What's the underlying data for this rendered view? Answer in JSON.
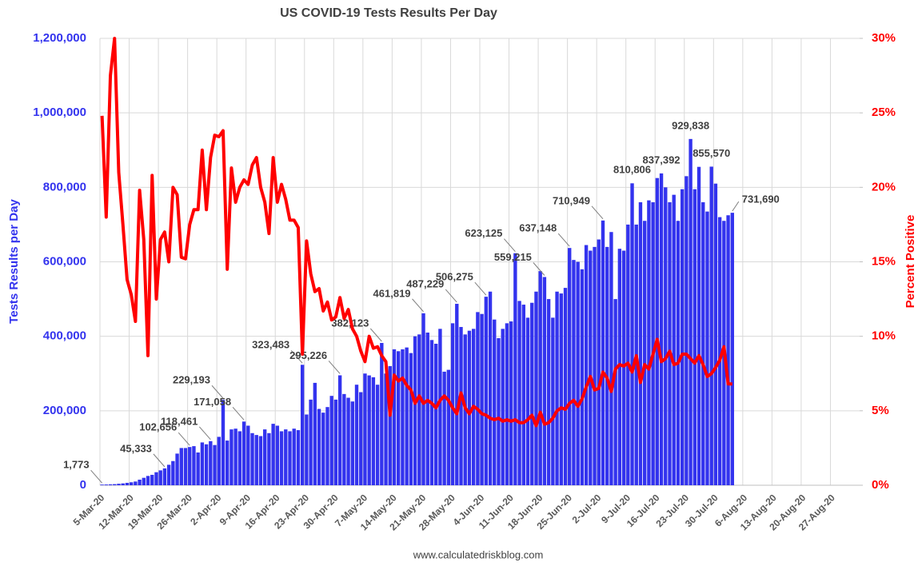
{
  "chart_data": {
    "type": "bar",
    "title": "US COVID-19 Tests Results Per Day",
    "y_label": "Tests Results per Day",
    "y2_label": "Percent Positive",
    "source": "www.calculatedriskblog.com",
    "grid": true,
    "categories": [
      "5-Mar-20",
      null,
      null,
      null,
      null,
      null,
      null,
      "12-Mar-20",
      null,
      null,
      null,
      null,
      null,
      null,
      "19-Mar-20",
      null,
      null,
      null,
      null,
      null,
      null,
      "26-Mar-20",
      null,
      null,
      null,
      null,
      null,
      null,
      "2-Apr-20",
      null,
      null,
      null,
      null,
      null,
      null,
      "9-Apr-20",
      null,
      null,
      null,
      null,
      null,
      null,
      "16-Apr-20",
      null,
      null,
      null,
      null,
      null,
      null,
      "23-Apr-20",
      null,
      null,
      null,
      null,
      null,
      null,
      "30-Apr-20",
      null,
      null,
      null,
      null,
      null,
      null,
      "7-May-20",
      null,
      null,
      null,
      null,
      null,
      null,
      "14-May-20",
      null,
      null,
      null,
      null,
      null,
      null,
      "21-May-20",
      null,
      null,
      null,
      null,
      null,
      null,
      "28-May-20",
      null,
      null,
      null,
      null,
      null,
      null,
      "4-Jun-20",
      null,
      null,
      null,
      null,
      null,
      null,
      "11-Jun-20",
      null,
      null,
      null,
      null,
      null,
      null,
      "18-Jun-20",
      null,
      null,
      null,
      null,
      null,
      null,
      "25-Jun-20",
      null,
      null,
      null,
      null,
      null,
      null,
      "2-Jul-20",
      null,
      null,
      null,
      null,
      null,
      null,
      "9-Jul-20",
      null,
      null,
      null,
      null,
      null,
      null,
      "16-Jul-20",
      null,
      null,
      null,
      null,
      null,
      null,
      "23-Jul-20",
      null,
      null,
      null,
      null,
      null,
      null,
      "30-Jul-20",
      null,
      null,
      null,
      null,
      null,
      null,
      "6-Aug-20",
      null,
      null,
      null,
      null,
      null,
      null,
      "13-Aug-20",
      null,
      null,
      null,
      null,
      null,
      null,
      "20-Aug-20",
      null,
      null,
      null,
      null,
      null,
      null,
      "27-Aug-20",
      null,
      null,
      null,
      null,
      null,
      null
    ],
    "series": [
      {
        "type": "bar",
        "color": "#3333ee",
        "values": [
          1773,
          2000,
          2500,
          3000,
          4000,
          5000,
          6500,
          8000,
          10000,
          15000,
          20000,
          25000,
          28000,
          35000,
          40000,
          45333,
          55000,
          65000,
          85000,
          100000,
          100000,
          102656,
          105000,
          88000,
          115000,
          110000,
          118461,
          108000,
          130000,
          229193,
          120000,
          150000,
          152000,
          145000,
          171058,
          160000,
          140000,
          135000,
          132000,
          150000,
          140000,
          165000,
          160000,
          145000,
          150000,
          145000,
          152000,
          148000,
          323483,
          190000,
          230000,
          275000,
          205000,
          195000,
          210000,
          240000,
          230000,
          295226,
          245000,
          235000,
          225000,
          270000,
          250000,
          300000,
          295000,
          290000,
          270000,
          382123,
          300000,
          320000,
          365000,
          360000,
          365000,
          370000,
          355000,
          400000,
          405000,
          461819,
          410000,
          390000,
          380000,
          420000,
          305000,
          310000,
          435000,
          487229,
          425000,
          405000,
          415000,
          420000,
          465000,
          460000,
          506275,
          520000,
          445000,
          395000,
          420000,
          435000,
          440000,
          623125,
          495000,
          485000,
          450000,
          490000,
          520000,
          575000,
          559215,
          500000,
          450000,
          520000,
          515000,
          530000,
          637148,
          605000,
          600000,
          580000,
          645000,
          630000,
          640000,
          660000,
          710949,
          640000,
          680000,
          500000,
          635000,
          630000,
          700000,
          810806,
          700000,
          760000,
          710000,
          765000,
          760000,
          825000,
          837392,
          800000,
          760000,
          780000,
          710000,
          795000,
          830000,
          929838,
          795000,
          855000,
          760000,
          735000,
          855570,
          810000,
          720000,
          710000,
          725000,
          731690,
          null,
          null,
          null,
          null,
          null,
          null,
          null,
          null,
          null,
          null,
          null,
          null,
          null,
          null,
          null,
          null,
          null,
          null,
          null,
          null,
          null,
          null,
          null,
          null,
          null,
          null,
          null,
          null,
          null,
          null
        ],
        "value_labels": [
          "1,773",
          null,
          null,
          null,
          null,
          null,
          null,
          null,
          null,
          null,
          null,
          null,
          null,
          null,
          null,
          "45,333",
          null,
          null,
          null,
          null,
          null,
          "102,656",
          null,
          null,
          null,
          null,
          "118,461",
          null,
          null,
          "229,193",
          null,
          null,
          null,
          null,
          "171,058",
          null,
          null,
          null,
          null,
          null,
          null,
          null,
          null,
          null,
          null,
          null,
          null,
          null,
          "323,483",
          null,
          null,
          null,
          null,
          null,
          null,
          null,
          null,
          "295,226",
          null,
          null,
          null,
          null,
          null,
          null,
          null,
          null,
          null,
          "382,123",
          null,
          null,
          null,
          null,
          null,
          null,
          null,
          null,
          null,
          "461,819",
          null,
          null,
          null,
          null,
          null,
          null,
          null,
          "487,229",
          null,
          null,
          null,
          null,
          null,
          null,
          "506,275",
          null,
          null,
          null,
          null,
          null,
          null,
          "623,125",
          null,
          null,
          null,
          null,
          null,
          null,
          "559,215",
          null,
          null,
          null,
          null,
          null,
          "637,148",
          null,
          null,
          null,
          null,
          null,
          null,
          null,
          "710,949",
          null,
          null,
          null,
          null,
          null,
          null,
          "810,806",
          null,
          null,
          null,
          null,
          null,
          null,
          "837,392",
          null,
          null,
          null,
          null,
          null,
          null,
          "929,838",
          null,
          null,
          null,
          null,
          "855,570",
          null,
          null,
          null,
          null,
          "731,690",
          null,
          null,
          null,
          null,
          null,
          null,
          null,
          null,
          null,
          null,
          null,
          null,
          null,
          null,
          null,
          null,
          null,
          null,
          null,
          null,
          null,
          null,
          null,
          null,
          null,
          null,
          null,
          null,
          null,
          null
        ]
      },
      {
        "type": "line",
        "axis": "y2",
        "color": "#ff0000",
        "values": [
          24.8,
          18,
          27.5,
          30,
          21,
          17.5,
          13.8,
          12.8,
          11,
          19.8,
          16.5,
          8.7,
          20.8,
          12.5,
          16.5,
          17,
          15,
          20,
          19.5,
          15.3,
          15.2,
          17.5,
          18.5,
          18.5,
          22.5,
          18.5,
          22,
          23.5,
          23.4,
          23.8,
          14.5,
          21.3,
          19,
          20,
          20.5,
          20.2,
          21.5,
          22,
          20,
          19,
          16.9,
          22,
          19,
          20.2,
          19.2,
          17.8,
          17.8,
          17.3,
          8.8,
          16.4,
          14.2,
          13,
          13.2,
          11.7,
          12.3,
          11.1,
          11.3,
          12.6,
          11.2,
          11.8,
          10.5,
          10,
          9,
          8.3,
          10,
          9.2,
          9.3,
          8.7,
          8.3,
          4.7,
          7.4,
          7,
          7.2,
          6.7,
          6.4,
          5.5,
          6,
          5.5,
          5.7,
          5.5,
          5.2,
          5.7,
          6,
          5.7,
          5.2,
          4.8,
          6.2,
          5.2,
          4.8,
          5.3,
          5.1,
          4.8,
          4.7,
          4.5,
          4.4,
          4.5,
          4.3,
          4.4,
          4.3,
          4.4,
          4.2,
          4.2,
          4.4,
          4.7,
          4,
          4.9,
          4.1,
          4.2,
          4.5,
          5,
          5.2,
          5.1,
          5.5,
          5.7,
          5.3,
          5.8,
          6.6,
          7.3,
          6.4,
          6.5,
          7.6,
          7.2,
          6.3,
          7.8,
          8.1,
          8,
          8.2,
          7.6,
          8.7,
          6.9,
          8.1,
          7.8,
          8.8,
          9.8,
          8.3,
          8.5,
          9,
          8.1,
          8.2,
          8.8,
          8.8,
          8.5,
          8.2,
          8.7,
          8.1,
          7.3,
          7.5,
          7.9,
          8.4,
          9.3,
          6.8,
          6.8,
          null,
          null,
          null,
          null,
          null,
          null,
          null,
          null,
          null,
          null,
          null,
          null,
          null,
          null,
          null,
          null,
          null,
          null,
          null,
          null,
          null,
          null,
          null,
          null,
          null,
          null,
          null,
          null,
          null,
          null
        ]
      }
    ],
    "ylim": [
      0,
      1200000
    ],
    "yticks": [
      0,
      {
        "value": 200000,
        "label": "200,000"
      },
      {
        "value": 400000,
        "label": "400,000"
      },
      {
        "value": 600000,
        "label": "600,000"
      },
      {
        "value": 800000,
        "label": "800,000"
      },
      {
        "value": 1000000,
        "label": "1,000,000"
      },
      {
        "value": 1200000,
        "label": "1,200,000"
      }
    ],
    "y2lim": [
      0,
      30
    ],
    "y2ticks": [
      {
        "value": 0,
        "label": "0%"
      },
      {
        "value": 5,
        "label": "5%"
      },
      {
        "value": 10,
        "label": "10%"
      },
      {
        "value": 15,
        "label": "15%"
      },
      {
        "value": 20,
        "label": "20%"
      },
      {
        "value": 25,
        "label": "25%"
      },
      {
        "value": 30,
        "label": "30%"
      }
    ]
  }
}
